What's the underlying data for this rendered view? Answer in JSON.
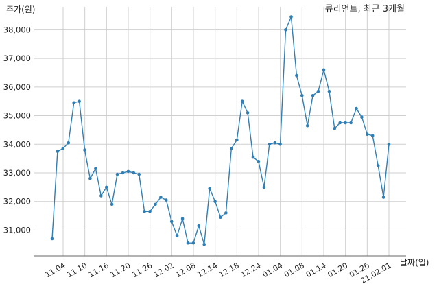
{
  "chart_data": {
    "type": "line",
    "title": "큐리언트, 최근 3개월",
    "ylabel": "주가(원)",
    "xlabel": "날짜(일)",
    "ylim": [
      30100,
      38800
    ],
    "yticks": [
      31000,
      32000,
      33000,
      34000,
      35000,
      36000,
      37000,
      38000
    ],
    "ytick_labels": [
      "31,000",
      "32,000",
      "33,000",
      "34,000",
      "35,000",
      "36,000",
      "37,000",
      "38,000"
    ],
    "xtick_labels": [
      "11.04",
      "11.10",
      "11.16",
      "11.20",
      "11.26",
      "12.02",
      "12.08",
      "12.14",
      "12.18",
      "12.24",
      "01.04",
      "01.08",
      "01.14",
      "01.20",
      "01.26",
      "21.02.01"
    ],
    "grid": true,
    "line_color": "#2f7fb5",
    "series": [
      {
        "values": [
          30700,
          33750,
          33850,
          34050,
          35450,
          35500,
          33800,
          32800,
          33150,
          32200,
          32500,
          31900,
          32950,
          33000,
          33050,
          33000,
          32950,
          31650,
          31650,
          31900,
          32150,
          32050,
          31300,
          30800,
          31400,
          30550,
          30550,
          31150,
          30500,
          32450,
          32000,
          31450,
          31600,
          33850,
          34150,
          35500,
          35100,
          33550,
          33400,
          32500,
          34000,
          34050,
          34000,
          38000,
          38450,
          36400,
          35700,
          34650,
          35700,
          35850,
          36600,
          35850,
          34550,
          34750,
          34750,
          34750,
          35250,
          34950,
          34350,
          34300,
          33250,
          32150,
          34000
        ]
      }
    ]
  }
}
